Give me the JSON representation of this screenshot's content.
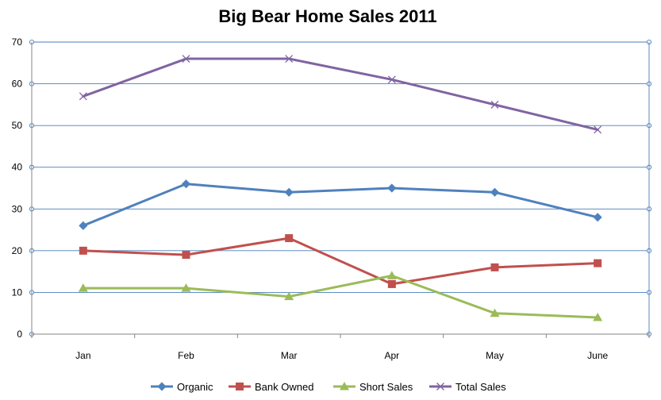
{
  "chart_data": {
    "type": "line",
    "title": "Big Bear Home Sales 2011",
    "xlabel": "",
    "ylabel": "",
    "categories": [
      "Jan",
      "Feb",
      "Mar",
      "Apr",
      "May",
      "June"
    ],
    "ylim": [
      0,
      70
    ],
    "yticks": [
      0,
      10,
      20,
      30,
      40,
      50,
      60,
      70
    ],
    "grid": true,
    "legend_position": "bottom",
    "series": [
      {
        "name": "Organic",
        "values": [
          26,
          36,
          34,
          35,
          34,
          28
        ],
        "color": "#4F81BD",
        "marker": "diamond"
      },
      {
        "name": "Bank Owned",
        "values": [
          20,
          19,
          23,
          12,
          16,
          17
        ],
        "color": "#C0504D",
        "marker": "square"
      },
      {
        "name": "Short Sales",
        "values": [
          11,
          11,
          9,
          14,
          5,
          4
        ],
        "color": "#9BBB59",
        "marker": "triangle"
      },
      {
        "name": "Total Sales",
        "values": [
          57,
          66,
          66,
          61,
          55,
          49
        ],
        "color": "#8064A2",
        "marker": "x"
      }
    ]
  }
}
